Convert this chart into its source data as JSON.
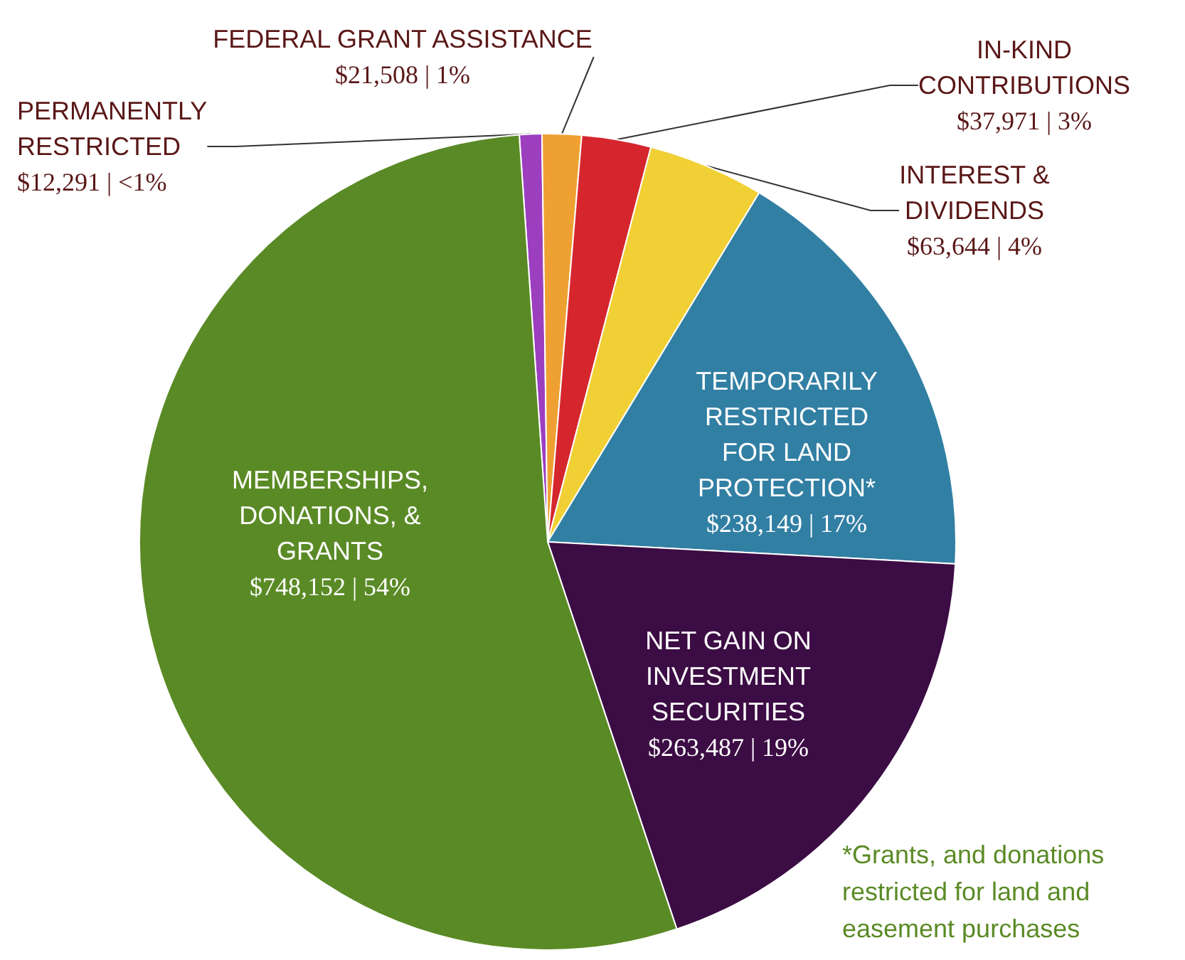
{
  "chart_data": {
    "type": "pie",
    "categories": [
      "PERMANENTLY RESTRICTED",
      "FEDERAL GRANT ASSISTANCE",
      "IN-KIND CONTRIBUTIONS",
      "INTEREST & DIVIDENDS",
      "TEMPORARILY RESTRICTED FOR LAND PROTECTION*",
      "NET GAIN ON INVESTMENT SECURITIES",
      "MEMBERSHIPS, DONATIONS, & GRANTS"
    ],
    "values": [
      12291,
      21508,
      37971,
      63644,
      238149,
      263487,
      748152
    ],
    "value_labels": [
      "$12,291 | <1%",
      "$21,508 | 1%",
      "$37,971 | 3%",
      "$63,644 | 4%",
      "$238,149 | 17%",
      "$263,487 | 19%",
      "$748,152 | 54%"
    ],
    "colors": [
      "#9b3fbf",
      "#eea132",
      "#d5262d",
      "#f1d035",
      "#327fa4",
      "#3c0c44",
      "#5a8a25"
    ],
    "annotations": [
      "*Grants, and donations restricted for land and easement purchases"
    ],
    "legend": false
  }
}
